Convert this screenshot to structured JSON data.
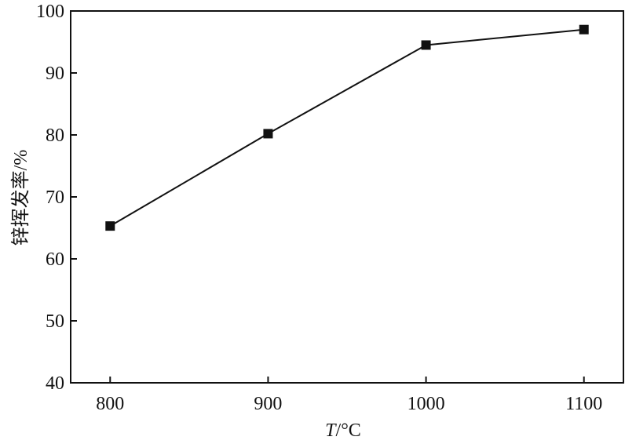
{
  "chart_data": {
    "type": "line",
    "title": "",
    "xlabel_italic": "T",
    "xlabel_rest": "/°C",
    "ylabel": "锌挥发率/%",
    "x": [
      800,
      900,
      1000,
      1100
    ],
    "series": [
      {
        "values": [
          65.3,
          80.2,
          94.5,
          97.0
        ]
      }
    ],
    "xticks": [
      800,
      900,
      1000,
      1100
    ],
    "yticks": [
      40,
      50,
      60,
      70,
      80,
      90,
      100
    ],
    "xlim": [
      775,
      1125
    ],
    "ylim": [
      40,
      100
    ],
    "grid": false,
    "marker": "square",
    "colors": {
      "line": "#111111",
      "marker": "#111111",
      "axis": "#111111"
    }
  }
}
